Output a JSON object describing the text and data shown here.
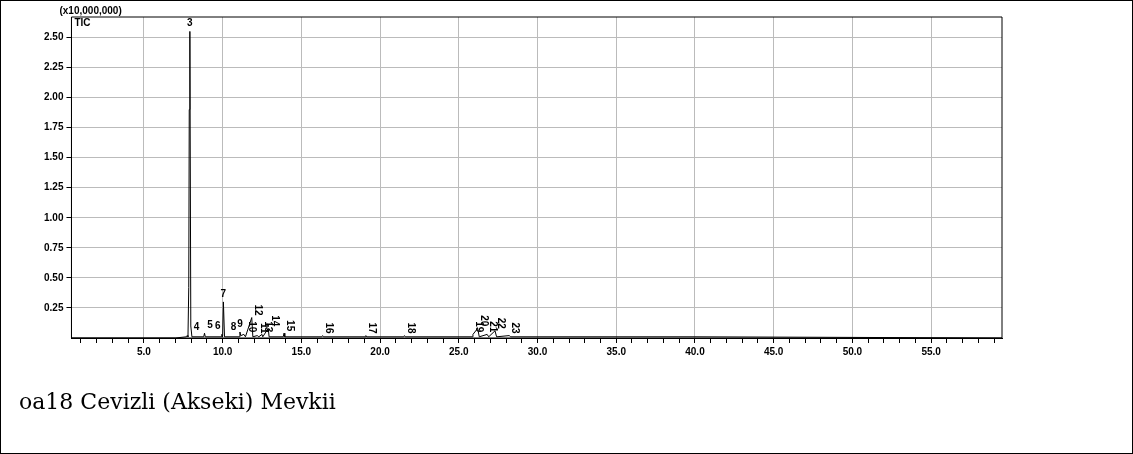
{
  "chart_data": {
    "type": "line",
    "title": "oa18 Cevizli (Akseki) Mevkii",
    "ylabel": "(x10,000,000)",
    "grid": true,
    "legend": false,
    "marker": "none",
    "line_style": "solid",
    "xlim": [
      0.4,
      59.5
    ],
    "ylim": [
      0,
      2.67
    ],
    "xticks": [
      {
        "value": 1,
        "label": null
      },
      {
        "value": 2,
        "label": null
      },
      {
        "value": 3,
        "label": null
      },
      {
        "value": 4,
        "label": null
      },
      {
        "value": 5,
        "label": "5.0"
      },
      {
        "value": 6,
        "label": null
      },
      {
        "value": 7,
        "label": null
      },
      {
        "value": 8,
        "label": null
      },
      {
        "value": 9,
        "label": null
      },
      {
        "value": 10,
        "label": "10.0"
      },
      {
        "value": 11,
        "label": null
      },
      {
        "value": 12,
        "label": null
      },
      {
        "value": 13,
        "label": null
      },
      {
        "value": 14,
        "label": null
      },
      {
        "value": 15,
        "label": "15.0"
      },
      {
        "value": 16,
        "label": null
      },
      {
        "value": 17,
        "label": null
      },
      {
        "value": 18,
        "label": null
      },
      {
        "value": 19,
        "label": null
      },
      {
        "value": 20,
        "label": "20.0"
      },
      {
        "value": 21,
        "label": null
      },
      {
        "value": 22,
        "label": null
      },
      {
        "value": 23,
        "label": null
      },
      {
        "value": 24,
        "label": null
      },
      {
        "value": 25,
        "label": "25.0"
      },
      {
        "value": 26,
        "label": null
      },
      {
        "value": 27,
        "label": null
      },
      {
        "value": 28,
        "label": null
      },
      {
        "value": 29,
        "label": null
      },
      {
        "value": 30,
        "label": "30.0"
      },
      {
        "value": 31,
        "label": null
      },
      {
        "value": 32,
        "label": null
      },
      {
        "value": 33,
        "label": null
      },
      {
        "value": 34,
        "label": null
      },
      {
        "value": 35,
        "label": "35.0"
      },
      {
        "value": 36,
        "label": null
      },
      {
        "value": 37,
        "label": null
      },
      {
        "value": 38,
        "label": null
      },
      {
        "value": 39,
        "label": null
      },
      {
        "value": 40,
        "label": "40.0"
      },
      {
        "value": 41,
        "label": null
      },
      {
        "value": 42,
        "label": null
      },
      {
        "value": 43,
        "label": null
      },
      {
        "value": 44,
        "label": null
      },
      {
        "value": 45,
        "label": "45.0"
      },
      {
        "value": 46,
        "label": null
      },
      {
        "value": 47,
        "label": null
      },
      {
        "value": 48,
        "label": null
      },
      {
        "value": 49,
        "label": null
      },
      {
        "value": 50,
        "label": "50.0"
      },
      {
        "value": 51,
        "label": null
      },
      {
        "value": 52,
        "label": null
      },
      {
        "value": 53,
        "label": null
      },
      {
        "value": 54,
        "label": null
      },
      {
        "value": 55,
        "label": "55.0"
      },
      {
        "value": 56,
        "label": null
      },
      {
        "value": 57,
        "label": null
      },
      {
        "value": 58,
        "label": null
      },
      {
        "value": 59,
        "label": null
      }
    ],
    "yticks": [
      {
        "value": 0.25,
        "label": "0.25"
      },
      {
        "value": 0.5,
        "label": "0.50"
      },
      {
        "value": 0.75,
        "label": "0.75"
      },
      {
        "value": 1,
        "label": "1.00"
      },
      {
        "value": 1.25,
        "label": "1.25"
      },
      {
        "value": 1.5,
        "label": "1.50"
      },
      {
        "value": 1.75,
        "label": "1.75"
      },
      {
        "value": 2,
        "label": "2.00"
      },
      {
        "value": 2.25,
        "label": "2.25"
      },
      {
        "value": 2.5,
        "label": "2.50"
      }
    ],
    "series": [
      {
        "name": "TIC",
        "color": "#000000",
        "x": [
          0.4,
          7.0,
          7.7,
          7.75,
          7.8,
          7.85,
          7.88,
          7.92,
          7.98,
          8.05,
          8.8,
          8.85,
          8.9,
          9.9,
          9.95,
          10.0,
          10.05,
          10.12,
          11.05,
          11.1,
          11.15,
          11.35,
          11.45,
          11.85,
          11.92,
          12.2,
          12.3,
          12.5,
          12.55,
          12.9,
          12.95,
          13.85,
          13.9,
          13.95,
          16.3,
          16.35,
          16.4,
          19.05,
          19.1,
          19.15,
          21.5,
          21.55,
          21.6,
          25.85,
          25.9,
          26.2,
          26.3,
          26.8,
          26.9,
          27.3,
          27.4,
          28.2,
          28.3,
          40,
          59.5
        ],
        "values": [
          0,
          0,
          0.01,
          0.02,
          0.01,
          0.42,
          1.9,
          2.55,
          0.1,
          0.01,
          0.01,
          0.04,
          0.01,
          0.01,
          0.03,
          0.01,
          0.3,
          0.01,
          0.01,
          0.05,
          0.02,
          0.03,
          0.01,
          0.17,
          0.01,
          0.02,
          0.01,
          0.03,
          0.01,
          0.08,
          0.01,
          0.01,
          0.04,
          0.01,
          0.01,
          0.02,
          0.01,
          0.01,
          0.02,
          0.01,
          0.01,
          0.02,
          0.01,
          0.01,
          0.03,
          0.08,
          0.01,
          0.03,
          0.01,
          0.06,
          0.01,
          0.02,
          0.01,
          0.01,
          0
        ]
      }
    ],
    "annotations": [
      {
        "text": "3",
        "x": 7.92,
        "y": 2.55
      },
      {
        "text": "4",
        "x": 8.35,
        "y": 0.02
      },
      {
        "text": "5",
        "x": 9.2,
        "y": 0.04
      },
      {
        "text": "6",
        "x": 9.7,
        "y": 0.03
      },
      {
        "text": "7",
        "x": 10.05,
        "y": 0.3
      },
      {
        "text": "8",
        "x": 10.7,
        "y": 0.02
      },
      {
        "text": "9",
        "x": 11.1,
        "y": 0.05
      },
      {
        "text": "10",
        "x": 11.45,
        "y": 0.03
      },
      {
        "text": "11",
        "x": 12.2,
        "y": 0.02
      },
      {
        "text": "12",
        "x": 11.85,
        "y": 0.17
      },
      {
        "text": "13",
        "x": 12.5,
        "y": 0.03
      },
      {
        "text": "14",
        "x": 12.9,
        "y": 0.08
      },
      {
        "text": "15",
        "x": 13.9,
        "y": 0.04
      },
      {
        "text": "16",
        "x": 16.35,
        "y": 0.02
      },
      {
        "text": "17",
        "x": 19.1,
        "y": 0.02
      },
      {
        "text": "18",
        "x": 21.55,
        "y": 0.02
      },
      {
        "text": "19",
        "x": 25.9,
        "y": 0.03
      },
      {
        "text": "20",
        "x": 26.2,
        "y": 0.08
      },
      {
        "text": "21",
        "x": 26.8,
        "y": 0.03
      },
      {
        "text": "22",
        "x": 27.3,
        "y": 0.06
      },
      {
        "text": "23",
        "x": 28.2,
        "y": 0.02
      }
    ]
  }
}
